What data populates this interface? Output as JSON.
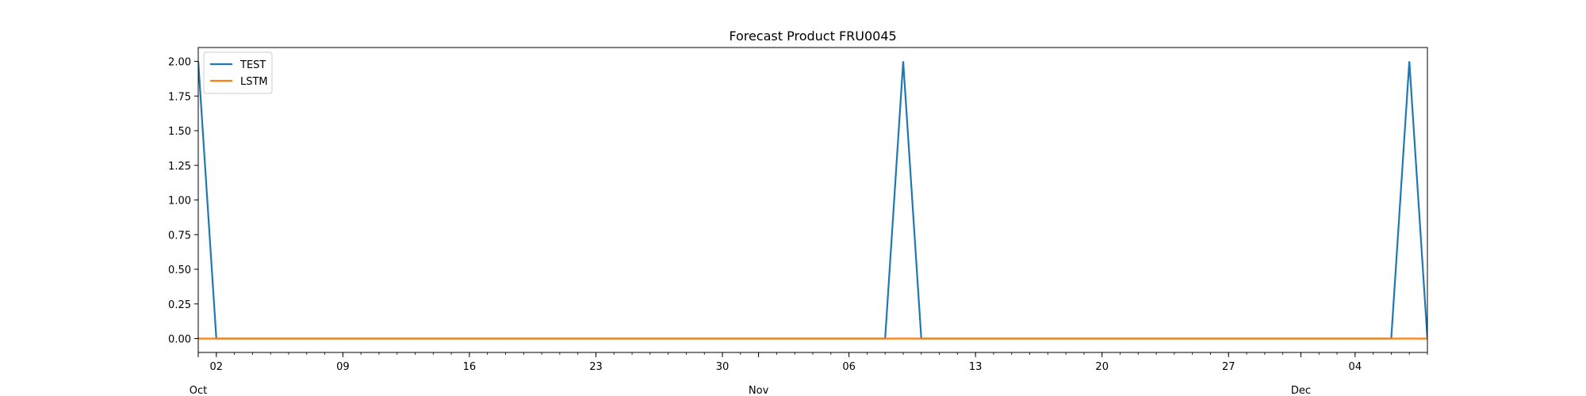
{
  "chart_data": {
    "type": "line",
    "title": "Forecast Product FRU0045",
    "xlabel": "",
    "ylabel": "",
    "xlim": [
      "2023-10-01",
      "2023-12-08"
    ],
    "ylim": [
      -0.1,
      2.1
    ],
    "grid": false,
    "legend_position": "top-left",
    "x_day_ticks": [
      {
        "date": "2023-10-02",
        "label": "02"
      },
      {
        "date": "2023-10-09",
        "label": "09"
      },
      {
        "date": "2023-10-16",
        "label": "16"
      },
      {
        "date": "2023-10-23",
        "label": "23"
      },
      {
        "date": "2023-10-30",
        "label": "30"
      },
      {
        "date": "2023-11-06",
        "label": "06"
      },
      {
        "date": "2023-11-13",
        "label": "13"
      },
      {
        "date": "2023-11-20",
        "label": "20"
      },
      {
        "date": "2023-11-27",
        "label": "27"
      },
      {
        "date": "2023-12-04",
        "label": "04"
      }
    ],
    "x_month_ticks": [
      {
        "date": "2023-10-01",
        "label": "Oct"
      },
      {
        "date": "2023-11-01",
        "label": "Nov"
      },
      {
        "date": "2023-12-01",
        "label": "Dec"
      }
    ],
    "y_ticks": [
      {
        "value": 0.0,
        "label": "0.00"
      },
      {
        "value": 0.25,
        "label": "0.25"
      },
      {
        "value": 0.5,
        "label": "0.50"
      },
      {
        "value": 0.75,
        "label": "0.75"
      },
      {
        "value": 1.0,
        "label": "1.00"
      },
      {
        "value": 1.25,
        "label": "1.25"
      },
      {
        "value": 1.5,
        "label": "1.50"
      },
      {
        "value": 1.75,
        "label": "1.75"
      },
      {
        "value": 2.0,
        "label": "2.00"
      }
    ],
    "series": [
      {
        "name": "TEST",
        "color": "#1f77b4",
        "points": [
          {
            "x": "2023-10-01",
            "y": 2
          },
          {
            "x": "2023-10-02",
            "y": 0
          },
          {
            "x": "2023-11-08",
            "y": 0
          },
          {
            "x": "2023-11-09",
            "y": 2
          },
          {
            "x": "2023-11-10",
            "y": 0
          },
          {
            "x": "2023-12-06",
            "y": 0
          },
          {
            "x": "2023-12-07",
            "y": 2
          },
          {
            "x": "2023-12-08",
            "y": 0
          }
        ]
      },
      {
        "name": "LSTM",
        "color": "#ff7f0e",
        "points": [
          {
            "x": "2023-10-01",
            "y": 0
          },
          {
            "x": "2023-12-08",
            "y": 0
          }
        ]
      }
    ]
  }
}
